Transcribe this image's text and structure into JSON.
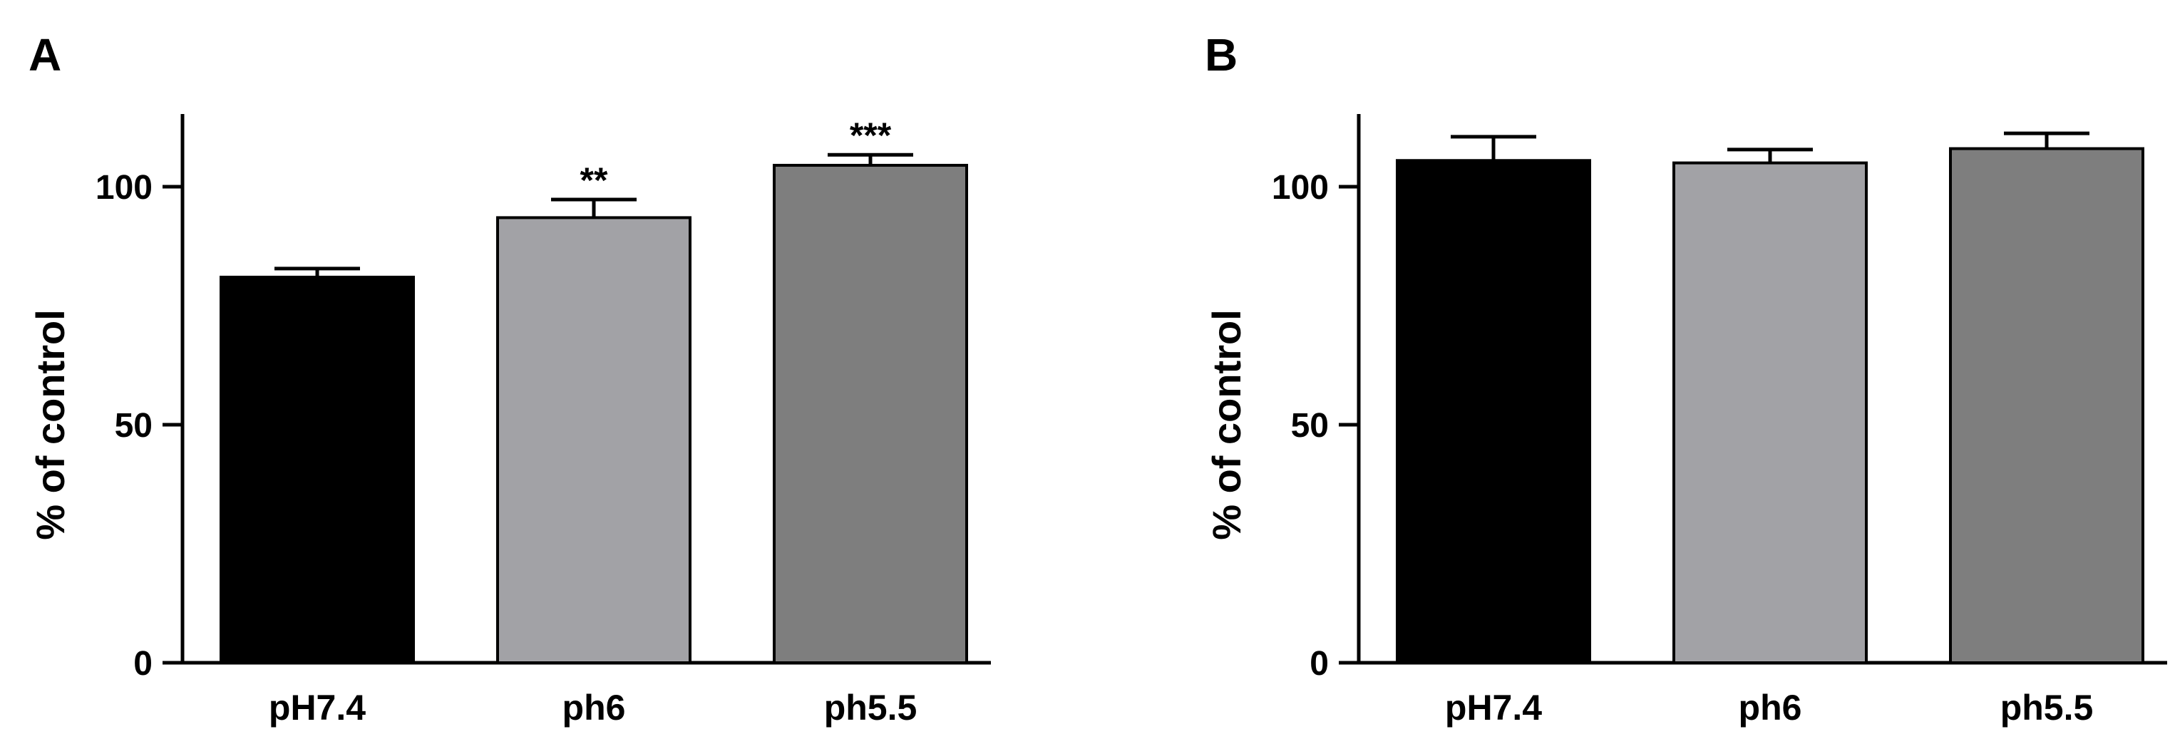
{
  "chart_data": [
    {
      "type": "bar",
      "panel_label": "A",
      "categories": [
        "pH7.4",
        "ph6",
        "ph5.5"
      ],
      "values": [
        81,
        93.5,
        104.5
      ],
      "errors": [
        1.8,
        3.8,
        2.2
      ],
      "bar_colors": [
        "#000000",
        "#a2a2a6",
        "#7e7e7e"
      ],
      "significance": [
        "",
        "**",
        "***"
      ],
      "ylabel": "% of control",
      "ylim": [
        0,
        116
      ],
      "yticks": [
        0,
        50,
        100
      ],
      "grid": false
    },
    {
      "type": "bar",
      "panel_label": "B",
      "categories": [
        "pH7.4",
        "ph6",
        "ph5.5"
      ],
      "values": [
        105.5,
        105,
        108
      ],
      "errors": [
        5,
        2.8,
        3.2
      ],
      "bar_colors": [
        "#000000",
        "#a2a2a6",
        "#7e7e7e"
      ],
      "significance": [
        "",
        "",
        ""
      ],
      "ylabel": "% of control",
      "ylim": [
        0,
        116
      ],
      "yticks": [
        0,
        50,
        100
      ],
      "grid": false
    }
  ]
}
